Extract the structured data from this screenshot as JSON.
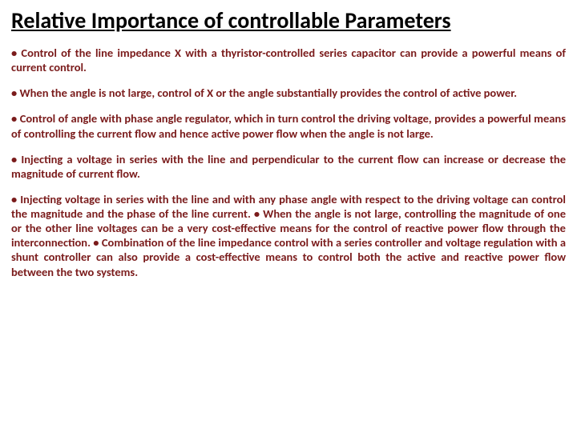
{
  "title": "Relative Importance of controllable Parameters",
  "colors": {
    "title": "#000000",
    "bullet_text": "#7a1b1b",
    "background": "#ffffff"
  },
  "typography": {
    "title_fontsize": 28,
    "title_weight": "bold",
    "bullet_fontsize": 14.5,
    "bullet_weight": "bold",
    "font_family": "Calibri, Arial, sans-serif"
  },
  "bullets": [
    "• Control of the line impedance X with a thyristor-controlled series capacitor can provide a powerful means of current control.",
    "• When the angle is not large, control of X or the angle substantially provides the control of active power.",
    "• Control of angle with phase angle regulator, which in turn control the driving voltage, provides a powerful means of controlling the current flow and hence active power flow when the angle is not large.",
    "• Injecting a voltage in series with the line and perpendicular to the current flow can increase or decrease the magnitude of current flow.",
    "• Injecting voltage in series with the line and with any phase angle with respect to the driving voltage can control the magnitude and the phase of the line current. • When the angle is not large, controlling the magnitude of one or the other line voltages can be a very cost-effective means for the control of reactive power flow through the interconnection.\n• Combination of the line impedance control with a series controller and voltage regulation with a shunt controller can also provide a cost-effective means to control both the active and reactive power flow between the two systems."
  ]
}
